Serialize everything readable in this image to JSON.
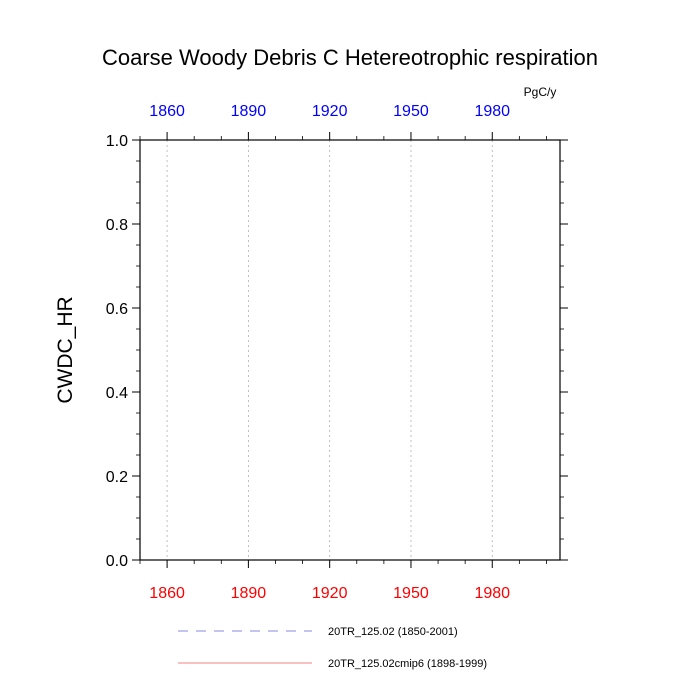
{
  "chart_data": {
    "type": "line",
    "title": "Coarse Woody Debris C Hetereotrophic respiration",
    "units": "PgC/y",
    "ylabel": "CWDC_HR",
    "xlabel": "",
    "xlim": [
      1850,
      2005
    ],
    "ylim": [
      0.0,
      1.0
    ],
    "x_ticks_bottom": [
      "1860",
      "1890",
      "1920",
      "1950",
      "1980"
    ],
    "x_ticks_top": [
      "1860",
      "1890",
      "1920",
      "1950",
      "1980"
    ],
    "x_tick_values": [
      1860,
      1890,
      1920,
      1950,
      1980
    ],
    "y_ticks": [
      "0.0",
      "0.2",
      "0.4",
      "0.6",
      "0.8",
      "1.0"
    ],
    "y_tick_values": [
      0.0,
      0.2,
      0.4,
      0.6,
      0.8,
      1.0
    ],
    "vertical_grid": true,
    "grid_style": "dashed",
    "legend_position": "bottom",
    "series": [
      {
        "name": "20TR_125.02 (1850-2001)",
        "color": "#8a8ae6",
        "dash": "dashed",
        "x": [
          1850,
          2001
        ],
        "y": [
          0.0,
          0.0
        ]
      },
      {
        "name": "20TR_125.02cmip6 (1898-1999)",
        "color": "#f08080",
        "dash": "solid",
        "x": [
          1898,
          1999
        ],
        "y": [
          0.0,
          0.0
        ]
      }
    ],
    "colors": {
      "top_axis": "#0000ff",
      "bottom_axis": "#ff0000"
    }
  }
}
